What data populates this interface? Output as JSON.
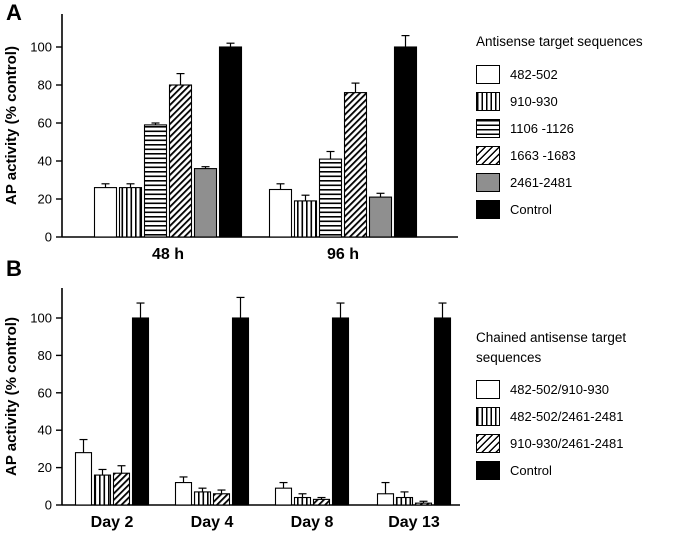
{
  "figure": {
    "background": "#ffffff",
    "panels": [
      {
        "label": "A"
      },
      {
        "label": "B"
      }
    ],
    "colors": {
      "white": "#ffffff",
      "gray": "#8f8f8f",
      "black": "#000000"
    }
  },
  "chart_data": [
    {
      "type": "bar",
      "panel": "A",
      "ylabel": "AP activity (% control)",
      "ylim": [
        0,
        110
      ],
      "yticks": [
        0,
        20,
        40,
        60,
        80,
        100
      ],
      "categories": [
        "48 h",
        "96 h"
      ],
      "legend_title": "Antisense target sequences",
      "legend_position": "right",
      "grid": false,
      "series": [
        {
          "name": "482-502",
          "pattern": "white",
          "values": [
            26,
            25
          ],
          "errors": [
            2,
            3
          ]
        },
        {
          "name": "910-930",
          "pattern": "vertical",
          "values": [
            26,
            19
          ],
          "errors": [
            2,
            3
          ]
        },
        {
          "name": "1106 -1126",
          "pattern": "horizontal",
          "values": [
            59,
            41
          ],
          "errors": [
            1,
            4
          ]
        },
        {
          "name": "1663 -1683",
          "pattern": "diagonal",
          "values": [
            80,
            76
          ],
          "errors": [
            6,
            5
          ]
        },
        {
          "name": "2461-2481",
          "pattern": "gray",
          "values": [
            36,
            21
          ],
          "errors": [
            1,
            2
          ]
        },
        {
          "name": "Control",
          "pattern": "black",
          "values": [
            100,
            100
          ],
          "errors": [
            2,
            6
          ]
        }
      ]
    },
    {
      "type": "bar",
      "panel": "B",
      "ylabel": "AP activity (% control)",
      "ylim": [
        0,
        115
      ],
      "yticks": [
        0,
        20,
        40,
        60,
        80,
        100
      ],
      "categories": [
        "Day 2",
        "Day 4",
        "Day 8",
        "Day 13"
      ],
      "legend_title": "Chained antisense target sequences",
      "legend_position": "right",
      "grid": false,
      "series": [
        {
          "name": "482-502/910-930",
          "pattern": "white",
          "values": [
            28,
            12,
            9,
            6
          ],
          "errors": [
            7,
            3,
            3,
            6
          ]
        },
        {
          "name": "482-502/2461-2481",
          "pattern": "vertical",
          "values": [
            16,
            7,
            4,
            4
          ],
          "errors": [
            3,
            2,
            2,
            3
          ]
        },
        {
          "name": "910-930/2461-2481",
          "pattern": "diagonal",
          "values": [
            17,
            6,
            3,
            1
          ],
          "errors": [
            4,
            2,
            1,
            1
          ]
        },
        {
          "name": "Control",
          "pattern": "black",
          "values": [
            100,
            100,
            100,
            100
          ],
          "errors": [
            8,
            11,
            8,
            8
          ]
        }
      ]
    }
  ]
}
